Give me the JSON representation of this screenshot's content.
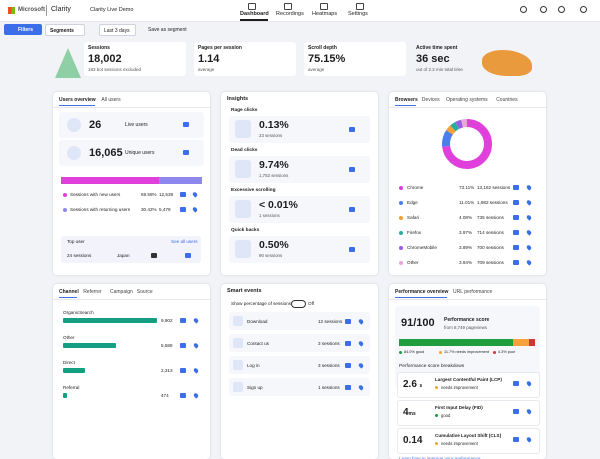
{
  "nav": {
    "brand": "Microsoft",
    "product": "Clarity",
    "project": "Clarity Live Demo",
    "tabs": [
      "Dashboard",
      "Recordings",
      "Heatmaps",
      "Settings"
    ]
  },
  "toolbar": {
    "filters": "Filters",
    "segments": "Segments",
    "range": "Last 3 days",
    "save": "Save as segment"
  },
  "metrics": [
    {
      "label": "Sessions",
      "value": "18,002",
      "note": "183 bot sessions excluded"
    },
    {
      "label": "Pages per session",
      "value": "1.14",
      "note": "average"
    },
    {
      "label": "Scroll depth",
      "value": "75.15%",
      "note": "average"
    },
    {
      "label": "Active time spent",
      "value": "36 sec",
      "note": "out of 2.2 min total time"
    }
  ],
  "users": {
    "tabs": [
      "Users overview",
      "All users"
    ],
    "live": {
      "value": "26",
      "label": "Live users"
    },
    "unique": {
      "value": "16,065",
      "label": "Unique users"
    },
    "segments": [
      {
        "name": "Sessions with new users",
        "color": "#e03fdc",
        "percent": {
          "value": 69.58,
          "label": "69.58%"
        },
        "count": "12,539"
      },
      {
        "name": "Sessions with returning users",
        "color": "#8e88ee",
        "percent": {
          "value": 30.42,
          "label": "30.42%"
        },
        "count": "5,479"
      }
    ],
    "top_user": {
      "title": "Top user",
      "link": "See all users",
      "sessions": "24 sessions",
      "country": "Japan"
    }
  },
  "insights": {
    "title": "Insights",
    "items": [
      {
        "name": "Rage clicks",
        "value": "0.13%",
        "sessions": "23 sessions"
      },
      {
        "name": "Dead clicks",
        "value": "9.74%",
        "sessions": "1,753 sessions"
      },
      {
        "name": "Excessive scrolling",
        "value": "< 0.01%",
        "sessions": "1 sessions"
      },
      {
        "name": "Quick backs",
        "value": "0.50%",
        "sessions": "90 sessions"
      }
    ]
  },
  "browsers": {
    "tabs": [
      "Browsers",
      "Devices",
      "Operating systems",
      "Countries"
    ],
    "items": [
      {
        "name": "Chrome",
        "color": "#e03fdc",
        "percent": {
          "value": 73.11,
          "label": "73.11%"
        },
        "sessions": "13,162 sessions"
      },
      {
        "name": "Edge",
        "color": "#4a7ee8",
        "percent": {
          "value": 11.01,
          "label": "11.01%"
        },
        "sessions": "1,982 sessions"
      },
      {
        "name": "Safari",
        "color": "#f2a03a",
        "percent": {
          "value": 4.08,
          "label": "4.08%"
        },
        "sessions": "735 sessions"
      },
      {
        "name": "Firefox",
        "color": "#27ae9c",
        "percent": {
          "value": 3.97,
          "label": "3.97%"
        },
        "sessions": "714 sessions"
      },
      {
        "name": "ChromeMobile",
        "color": "#9a5fe0",
        "percent": {
          "value": 3.89,
          "label": "3.89%"
        },
        "sessions": "700 sessions"
      },
      {
        "name": "Other",
        "color": "#e9a7d8",
        "percent": {
          "value": 3.94,
          "label": "3.94%"
        },
        "sessions": "709 sessions"
      }
    ]
  },
  "channels": {
    "tabs": [
      "Channel",
      "Referrer",
      "Campaign",
      "Source"
    ],
    "color": "#159f82",
    "items": [
      {
        "name": "OrganicSearch",
        "sessions": {
          "value": 9902,
          "label": "9,902"
        }
      },
      {
        "name": "Other",
        "sessions": {
          "value": 5588,
          "label": "5,588"
        }
      },
      {
        "name": "Direct",
        "sessions": {
          "value": 2313,
          "label": "2,313"
        }
      },
      {
        "name": "Referral",
        "sessions": {
          "value": 474,
          "label": "474"
        }
      }
    ]
  },
  "smart_events": {
    "title": "Smart events",
    "toggle_label": "Show percentage of sessions",
    "toggle_state": "Off",
    "items": [
      {
        "name": "Download",
        "sessions": "12 sessions"
      },
      {
        "name": "Contact us",
        "sessions": "3 sessions"
      },
      {
        "name": "Log in",
        "sessions": "3 sessions"
      },
      {
        "name": "Sign up",
        "sessions": "1 sessions"
      }
    ]
  },
  "performance": {
    "tabs": [
      "Performance overview",
      "URL performance"
    ],
    "score": "91/100",
    "score_label": "Performance score",
    "pageviews": "from 8,749 pageviews",
    "distribution": [
      {
        "color": "#1e9e3e",
        "value": 84.0,
        "label": "84.0% good"
      },
      {
        "color": "#f5a13c",
        "value": 11.7,
        "label": "11.7% needs improvement"
      },
      {
        "color": "#d13438",
        "value": 4.3,
        "label": "4.3% poor"
      }
    ],
    "breakdown_title": "Performance score breakdown",
    "metrics": [
      {
        "value": "2.6",
        "unit": "s",
        "name": "Largest Contentful Paint (LCP)",
        "status": "needs improvement",
        "color": "#f5a13c"
      },
      {
        "value": "4",
        "unit": "ms",
        "name": "First Input Delay (FID)",
        "status": "good",
        "color": "#1e9e3e"
      },
      {
        "value": "0.14",
        "name": "Cumulative Layout Shift (CLS)",
        "status": "needs improvement",
        "color": "#f5a13c"
      }
    ],
    "learn": "Learn how to improve your performance"
  }
}
